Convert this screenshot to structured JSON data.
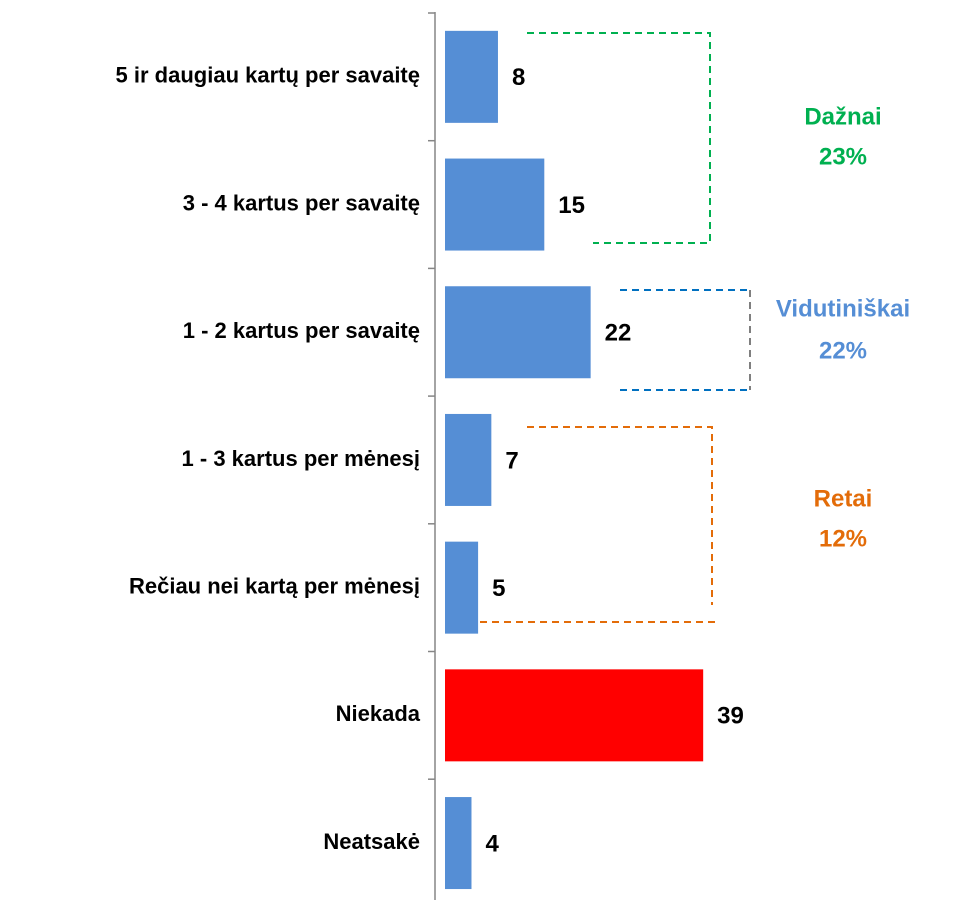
{
  "chart_data": {
    "type": "bar",
    "orientation": "horizontal",
    "categories": [
      "5 ir daugiau kartų per savaitę",
      "3 - 4 kartus per savaitę",
      "1 - 2 kartus per savaitę",
      "1 - 3 kartus per mėnesį",
      "Rečiau nei kartą per mėnesį",
      "Niekada",
      "Neatsakė"
    ],
    "values": [
      8,
      15,
      22,
      7,
      5,
      39,
      4
    ],
    "colors": [
      "#558ed5",
      "#558ed5",
      "#558ed5",
      "#558ed5",
      "#558ed5",
      "#ff0000",
      "#558ed5"
    ],
    "annotations": [
      {
        "text": "Dažnai",
        "value": 23,
        "value_label": "23%",
        "color": "#00b050"
      },
      {
        "text": "Vidutiniškai",
        "value": 22,
        "value_label": "22%",
        "color": "#558ed5"
      },
      {
        "text": "Retai",
        "value": 12,
        "value_label": "12%",
        "color": "#e36c09"
      }
    ]
  }
}
